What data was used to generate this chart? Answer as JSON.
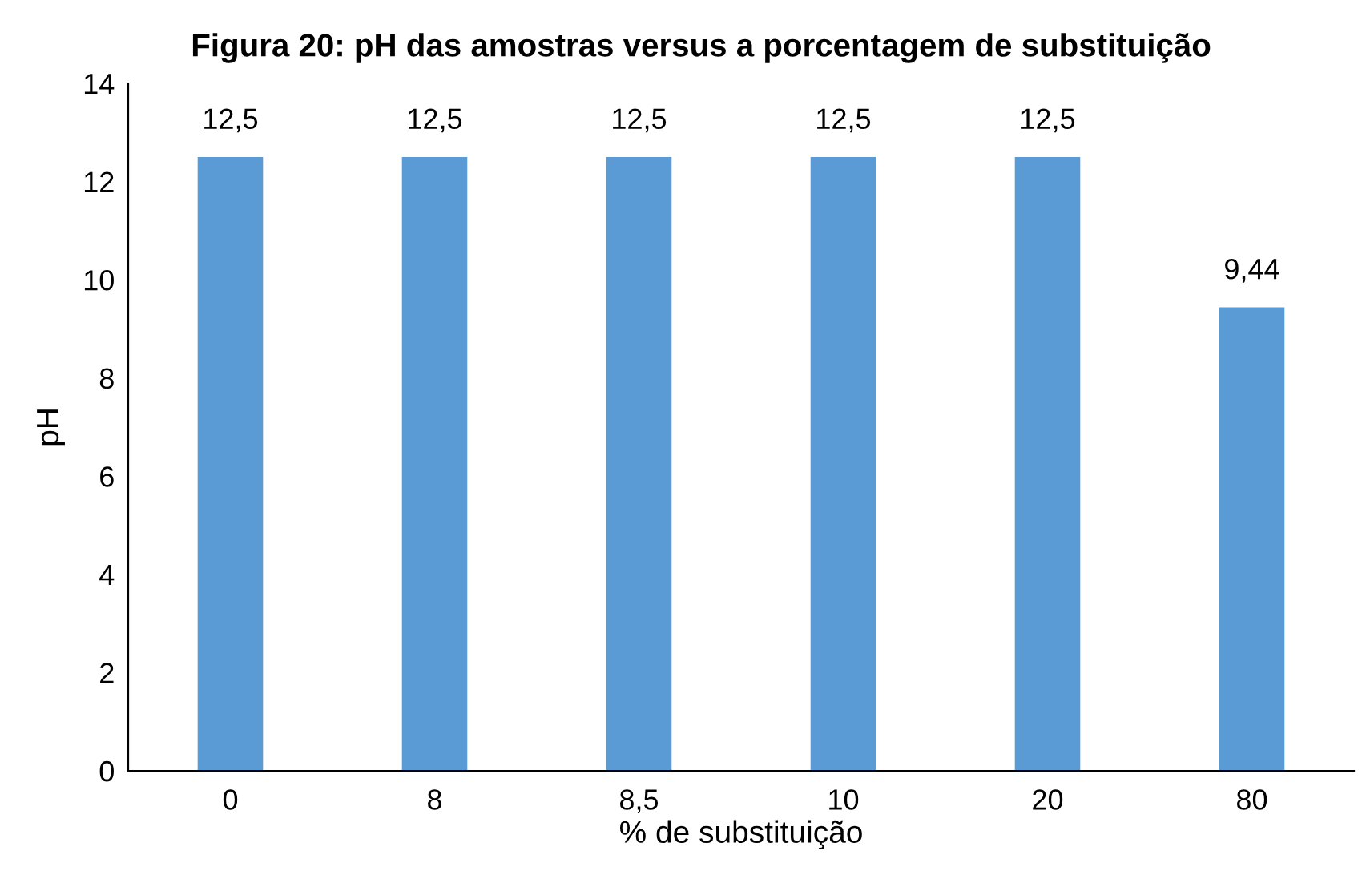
{
  "chart_data": {
    "type": "bar",
    "title": "Figura 20: pH das amostras versus a porcentagem de substituição",
    "xlabel": "% de substituição",
    "ylabel": "pH",
    "categories": [
      "0",
      "8",
      "8,5",
      "10",
      "20",
      "80"
    ],
    "values": [
      12.5,
      12.5,
      12.5,
      12.5,
      12.5,
      9.44
    ],
    "value_labels": [
      "12,5",
      "12,5",
      "12,5",
      "12,5",
      "12,5",
      "9,44"
    ],
    "color": "#5b9bd5",
    "ylim": [
      0,
      14
    ],
    "yticks": [
      0,
      2,
      4,
      6,
      8,
      10,
      12,
      14
    ],
    "grid": false,
    "legend": false
  }
}
